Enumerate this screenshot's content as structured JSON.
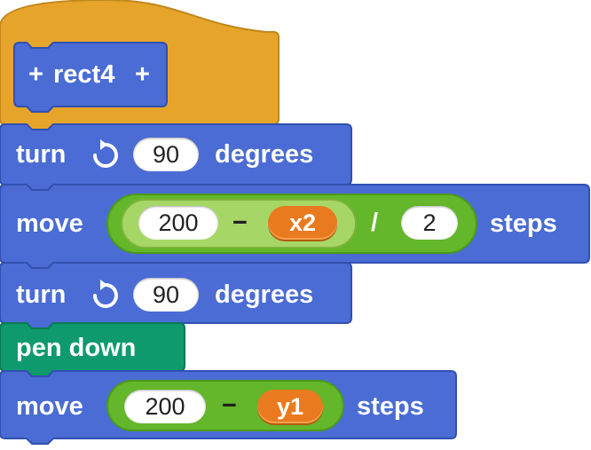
{
  "script": {
    "hat": {
      "prefix": "+",
      "name": "rect4",
      "suffix": "+",
      "color": "#e6a52a"
    },
    "blocks": [
      {
        "type": "turn",
        "label": "turn",
        "icon": "rotate-clockwise-icon",
        "value": "90",
        "suffix": "degrees",
        "color": "#4a6cd4"
      },
      {
        "type": "move",
        "label": "move",
        "expr": {
          "left": {
            "num": "200",
            "op": "−",
            "var": "x2"
          },
          "op": "/",
          "right": "2"
        },
        "suffix": "steps",
        "color": "#4a6cd4"
      },
      {
        "type": "turn",
        "label": "turn",
        "icon": "rotate-clockwise-icon",
        "value": "90",
        "suffix": "degrees",
        "color": "#4a6cd4"
      },
      {
        "type": "pen",
        "label": "pen down",
        "color": "#0e9a6c"
      },
      {
        "type": "move",
        "label": "move",
        "expr": {
          "num": "200",
          "op": "−",
          "var": "y1"
        },
        "suffix": "steps",
        "color": "#4a6cd4"
      }
    ]
  },
  "colors": {
    "motion": "#4a6cd4",
    "pen": "#0e9a6c",
    "control": "#e6a52a",
    "operator": "#64b62a",
    "operator_light": "#a6d766",
    "variable": "#ea7a1f"
  }
}
